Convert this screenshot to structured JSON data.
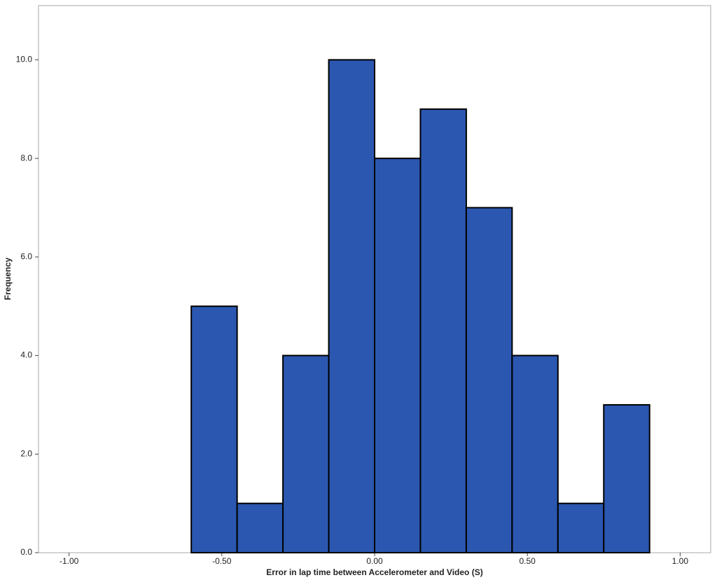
{
  "chart_data": {
    "type": "histogram",
    "x_label": "Error in lap time between Accelerometer and Video (S)",
    "y_label": "Frequency",
    "bins": [
      -0.6,
      -0.45,
      -0.3,
      -0.15,
      0,
      0.15,
      0.3,
      0.45,
      0.6,
      0.75,
      0.9
    ],
    "values": [
      5,
      1,
      4,
      10,
      8,
      9,
      7,
      4,
      1,
      3
    ],
    "color": "#2b57b0",
    "xlim": [
      -1.1,
      1.1
    ],
    "ylim": [
      0,
      11.1
    ],
    "xticks": [
      {
        "value": -1,
        "label": "-1.00"
      },
      {
        "value": -0.5,
        "label": "-0.50"
      },
      {
        "value": 0,
        "label": "0.00"
      },
      {
        "value": 0.5,
        "label": "0.50"
      },
      {
        "value": 1,
        "label": "1.00"
      }
    ],
    "yticks": [
      {
        "value": 0,
        "label": "0.0"
      },
      {
        "value": 2,
        "label": "2.0"
      },
      {
        "value": 4,
        "label": "4.0"
      },
      {
        "value": 6,
        "label": "6.0"
      },
      {
        "value": 8,
        "label": "8.0"
      },
      {
        "value": 10,
        "label": "10.0"
      }
    ]
  }
}
